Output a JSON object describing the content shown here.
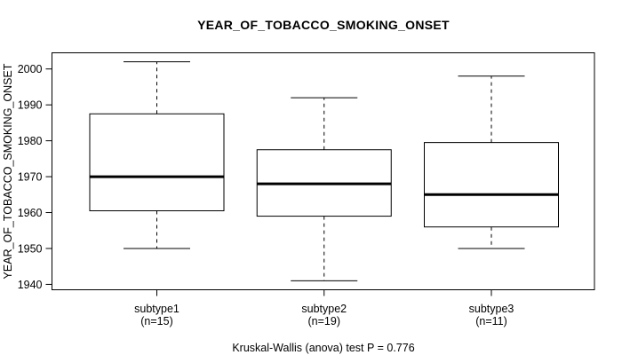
{
  "chart_data": {
    "type": "boxplot",
    "title": "YEAR_OF_TOBACCO_SMOKING_ONSET",
    "ylabel": "YEAR_OF_TOBACCO_SMOKING_ONSET",
    "ylim": [
      1938.5,
      2004.5
    ],
    "yticks": [
      1940,
      1950,
      1960,
      1970,
      1980,
      1990,
      2000
    ],
    "grid": false,
    "legend": false,
    "groups": [
      {
        "label": "subtype1",
        "n_label": "(n=15)",
        "n": 15,
        "whisker_low": 1950,
        "q1": 1960.5,
        "median": 1970,
        "q3": 1987.5,
        "whisker_high": 2002
      },
      {
        "label": "subtype2",
        "n_label": "(n=19)",
        "n": 19,
        "whisker_low": 1941,
        "q1": 1959,
        "median": 1968,
        "q3": 1977.5,
        "whisker_high": 1992
      },
      {
        "label": "subtype3",
        "n_label": "(n=11)",
        "n": 11,
        "whisker_low": 1950,
        "q1": 1956,
        "median": 1965,
        "q3": 1979.5,
        "whisker_high": 1998
      }
    ],
    "annotation": "Kruskal-Wallis (anova) test P = 0.776",
    "colors": {
      "line": "#000000",
      "box_fill": "#ffffff",
      "background": "#ffffff",
      "text": "#000000"
    }
  }
}
